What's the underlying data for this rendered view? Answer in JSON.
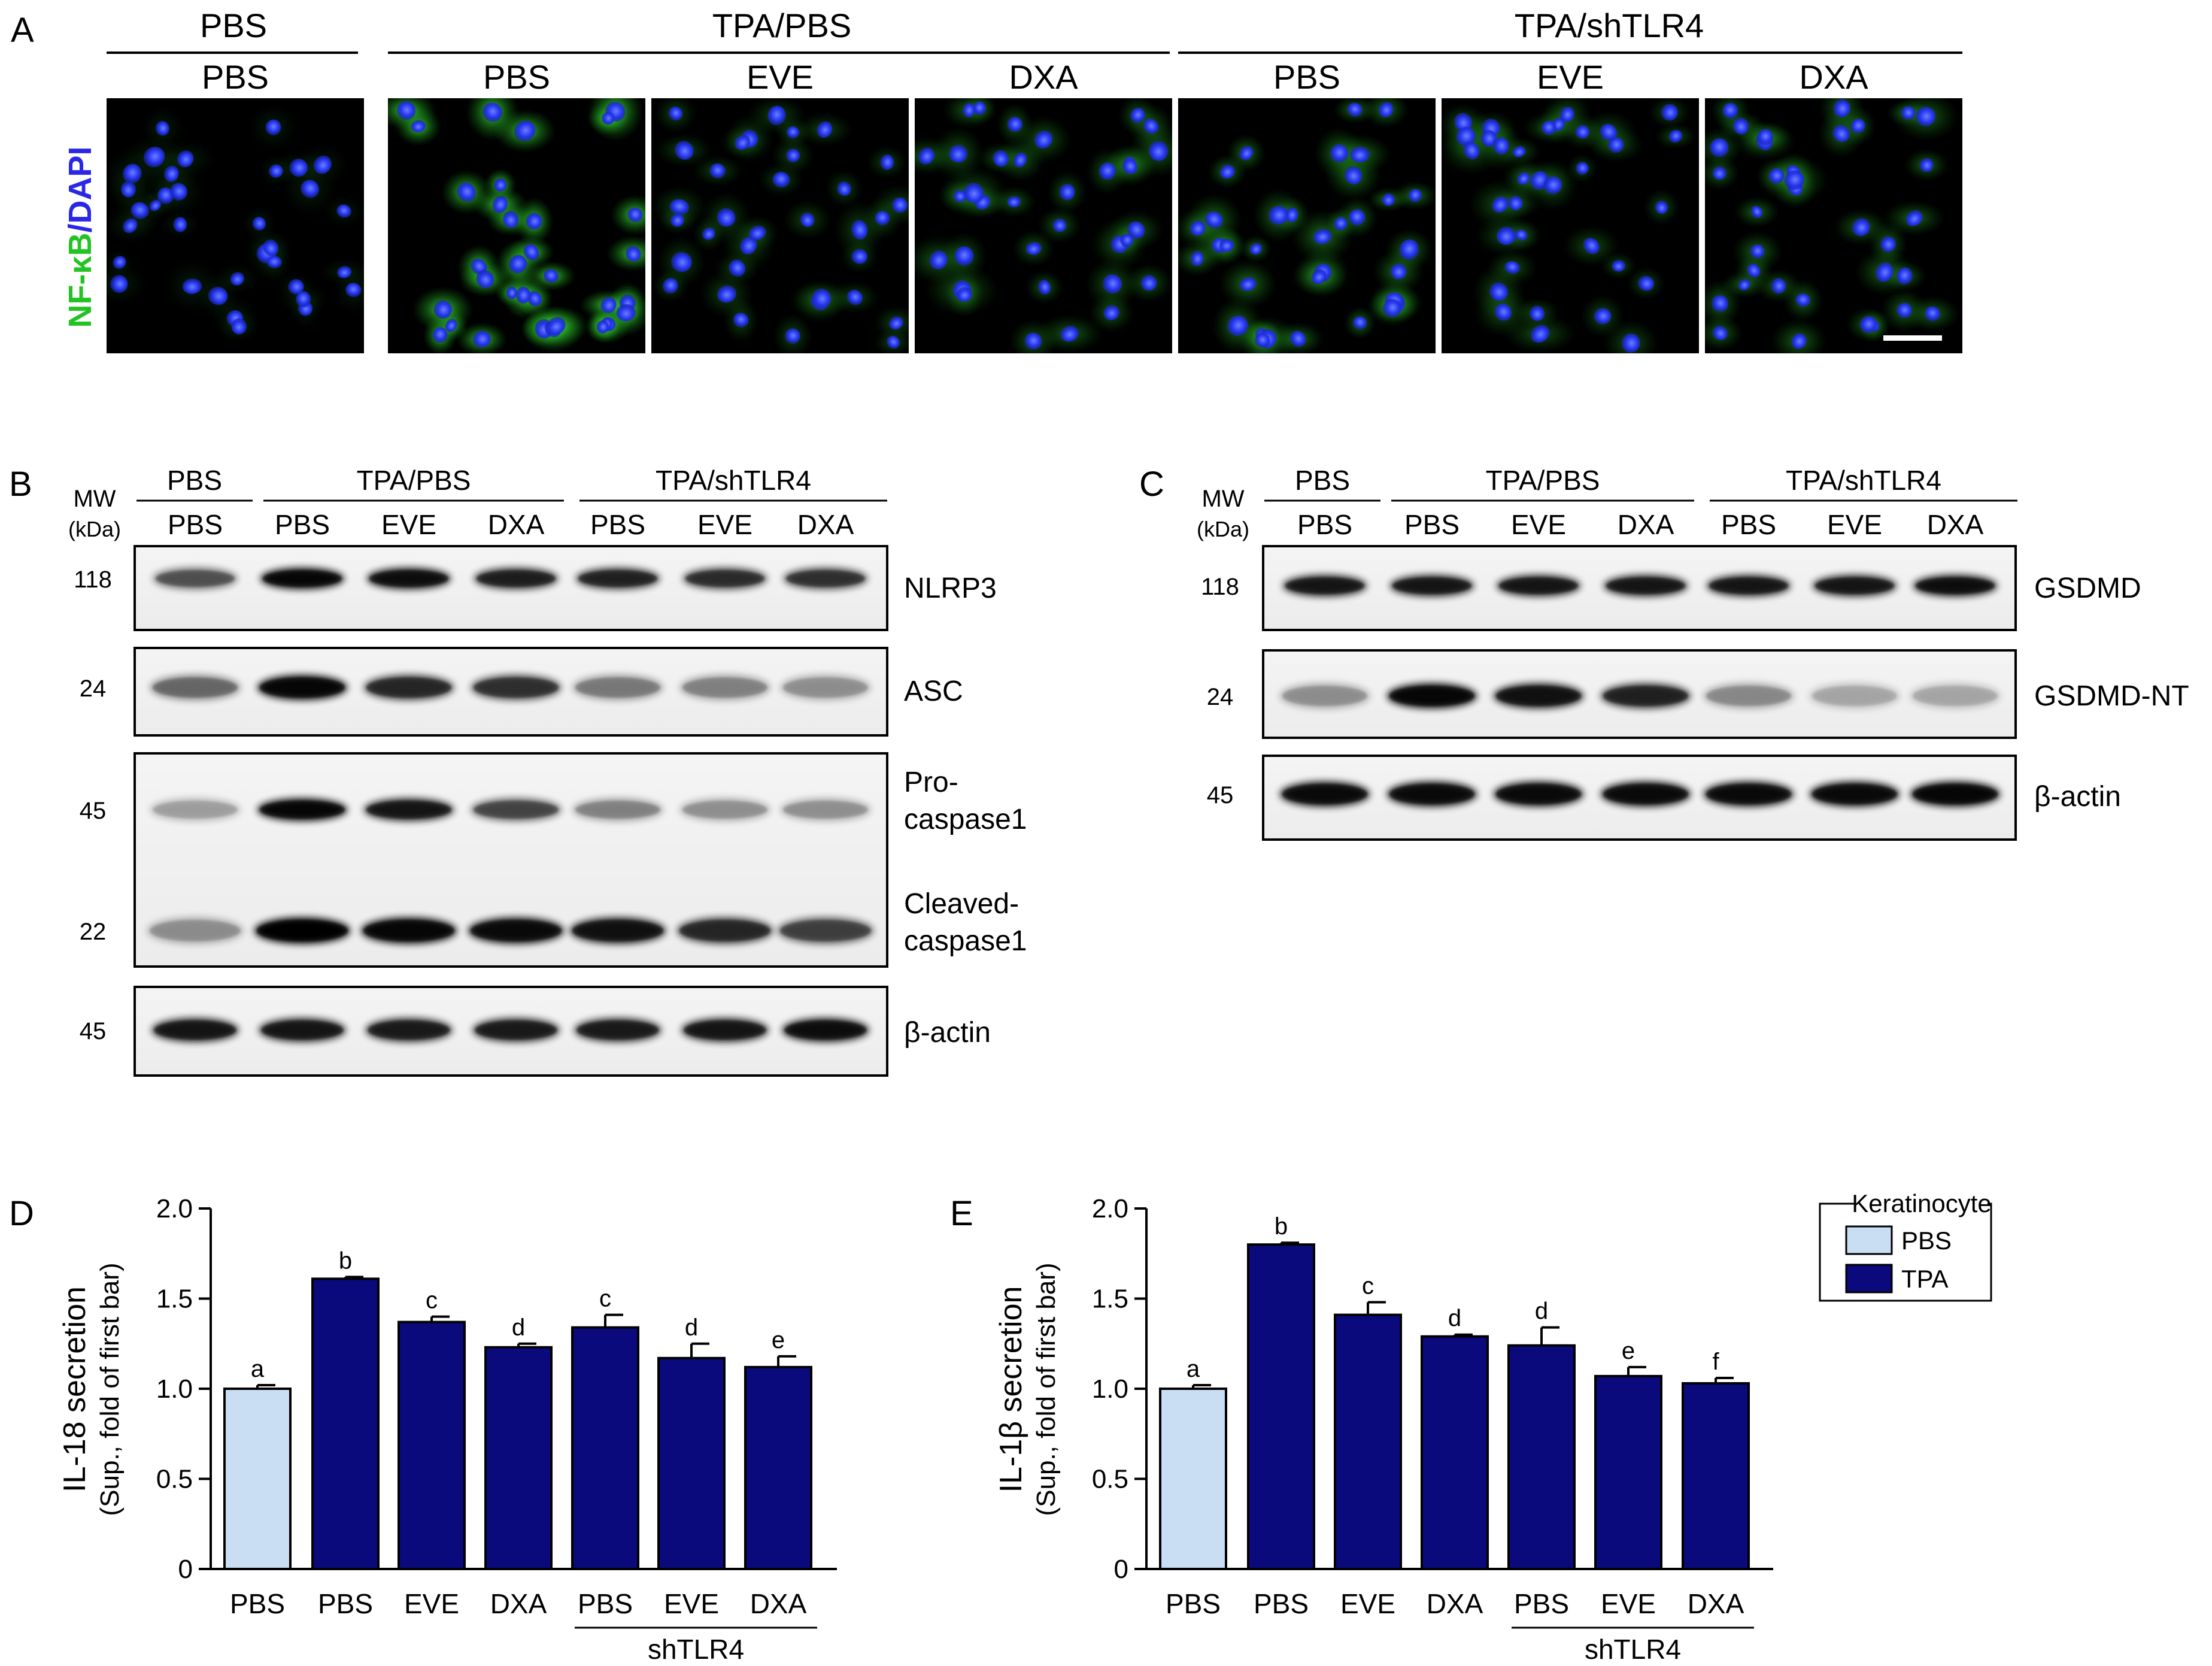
{
  "panel_letters": {
    "a": "A",
    "b": "B",
    "c": "C",
    "d": "D",
    "e": "E"
  },
  "panel_a": {
    "stain_nf": "NF-κB",
    "stain_sep": "/",
    "stain_dapi": "DAPI",
    "group_headers": [
      "PBS",
      "TPA/PBS",
      "TPA/shTLR4"
    ],
    "image_labels": [
      "PBS",
      "PBS",
      "EVE",
      "DXA",
      "PBS",
      "EVE",
      "DXA"
    ],
    "colors": {
      "nfkb": "#22c322",
      "dapi": "#2a28e6"
    }
  },
  "panel_b": {
    "mw_label": "MW",
    "kda_label": "(kDa)",
    "group_headers": [
      "PBS",
      "TPA/PBS",
      "TPA/shTLR4"
    ],
    "lane_labels": [
      "PBS",
      "PBS",
      "EVE",
      "DXA",
      "PBS",
      "EVE",
      "DXA"
    ],
    "bands": [
      {
        "mw": "118",
        "label": "NLRP3"
      },
      {
        "mw": "24",
        "label": "ASC"
      },
      {
        "mw": "45",
        "label_lines": [
          "Pro-",
          "caspase1"
        ]
      },
      {
        "mw": "22",
        "label_lines": [
          "Cleaved-",
          "caspase1"
        ]
      },
      {
        "mw": "45",
        "label": "β-actin"
      }
    ]
  },
  "panel_c": {
    "mw_label": "MW",
    "kda_label": "(kDa)",
    "group_headers": [
      "PBS",
      "TPA/PBS",
      "TPA/shTLR4"
    ],
    "lane_labels": [
      "PBS",
      "PBS",
      "EVE",
      "DXA",
      "PBS",
      "EVE",
      "DXA"
    ],
    "bands": [
      {
        "mw": "118",
        "label": "GSDMD"
      },
      {
        "mw": "24",
        "label": "GSDMD-NT"
      },
      {
        "mw": "45",
        "label": "β-actin"
      }
    ]
  },
  "legend": {
    "title": "Keratinocyte",
    "entries": [
      {
        "label": "PBS",
        "color": "#c9ddf3"
      },
      {
        "label": "TPA",
        "color": "#0a0a7d"
      }
    ]
  },
  "chart_data": [
    {
      "type": "bar",
      "panel": "D",
      "ylabel": "IL-18 secretion",
      "ylabel_sub": "(Sup., fold of first bar)",
      "categories": [
        "PBS",
        "PBS",
        "EVE",
        "DXA",
        "PBS",
        "EVE",
        "DXA"
      ],
      "group_label": "shTLR4",
      "values": [
        1.0,
        1.61,
        1.37,
        1.23,
        1.34,
        1.17,
        1.12
      ],
      "errors": [
        0.02,
        0.01,
        0.03,
        0.02,
        0.07,
        0.08,
        0.06
      ],
      "letters": [
        "a",
        "b",
        "c",
        "d",
        "c",
        "d",
        "e"
      ],
      "series_index": [
        0,
        1,
        1,
        1,
        1,
        1,
        1
      ],
      "ylim": [
        0,
        2.0
      ],
      "yticks": [
        "0",
        "0.5",
        "1.0",
        "1.5",
        "2.0"
      ]
    },
    {
      "type": "bar",
      "panel": "E",
      "ylabel": "IL-1β secretion",
      "ylabel_sub": "(Sup., fold of first bar)",
      "categories": [
        "PBS",
        "PBS",
        "EVE",
        "DXA",
        "PBS",
        "EVE",
        "DXA"
      ],
      "group_label": "shTLR4",
      "values": [
        1.0,
        1.8,
        1.41,
        1.29,
        1.24,
        1.07,
        1.03
      ],
      "errors": [
        0.02,
        0.01,
        0.07,
        0.01,
        0.1,
        0.05,
        0.03
      ],
      "letters": [
        "a",
        "b",
        "c",
        "d",
        "d",
        "e",
        "f"
      ],
      "series_index": [
        0,
        1,
        1,
        1,
        1,
        1,
        1
      ],
      "ylim": [
        0,
        2.0
      ],
      "yticks": [
        "0",
        "0.5",
        "1.0",
        "1.5",
        "2.0"
      ]
    }
  ]
}
